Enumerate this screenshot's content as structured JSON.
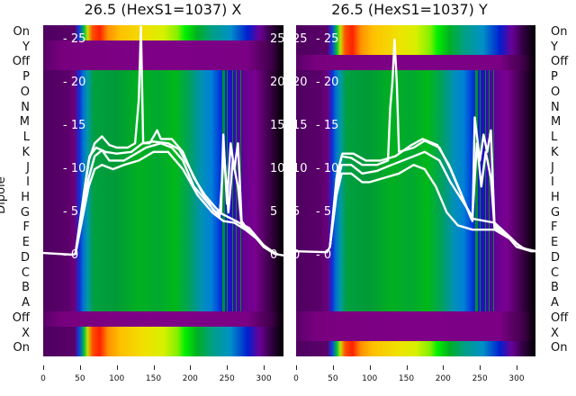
{
  "chart_data": [
    {
      "type": "heatmap",
      "title": "26.5 (HexS1=1037) X",
      "ylabel": "Dipole",
      "xlim": [
        0,
        328
      ],
      "x_ticks": [
        "0",
        "50",
        "100",
        "150",
        "200",
        "250",
        "300"
      ],
      "row_labels": [
        "On",
        "Y",
        "Off",
        "P",
        "O",
        "N",
        "M",
        "L",
        "K",
        "J",
        "I",
        "H",
        "G",
        "F",
        "E",
        "D",
        "C",
        "B",
        "A",
        "Off",
        "X",
        "On"
      ],
      "row_types": [
        "rainbow",
        "purple",
        "purple",
        "green",
        "green",
        "green",
        "green",
        "green",
        "green",
        "green",
        "green",
        "green",
        "green",
        "green",
        "green",
        "green",
        "green",
        "green",
        "green",
        "purple",
        "rainbow",
        "rainbow"
      ],
      "overlay_ylim": [
        0,
        26.5
      ],
      "overlay_y_ticks": [
        "0",
        "5",
        "10",
        "15",
        "20",
        "25"
      ],
      "overlay_lines": [
        {
          "name": "trace-1",
          "points": [
            [
              0,
              0.3
            ],
            [
              40,
              0.1
            ],
            [
              44,
              0.2
            ],
            [
              55,
              7
            ],
            [
              62,
              11
            ],
            [
              70,
              13
            ],
            [
              80,
              13.8
            ],
            [
              90,
              12.8
            ],
            [
              100,
              12.5
            ],
            [
              115,
              12.5
            ],
            [
              125,
              13
            ],
            [
              130,
              18
            ],
            [
              133,
              26.5
            ],
            [
              136,
              13
            ],
            [
              145,
              13
            ],
            [
              155,
              14.5
            ],
            [
              160,
              13.5
            ],
            [
              175,
              13.5
            ],
            [
              190,
              12
            ],
            [
              205,
              9
            ],
            [
              220,
              7
            ],
            [
              235,
              5.5
            ],
            [
              242,
              5
            ],
            [
              245,
              14
            ],
            [
              250,
              6
            ],
            [
              255,
              13
            ],
            [
              260,
              10
            ],
            [
              265,
              13
            ],
            [
              270,
              4
            ],
            [
              278,
              3
            ],
            [
              290,
              2
            ],
            [
              300,
              1
            ],
            [
              315,
              0.2
            ],
            [
              328,
              0
            ]
          ]
        },
        {
          "name": "trace-2",
          "points": [
            [
              44,
              0.2
            ],
            [
              55,
              6
            ],
            [
              62,
              9
            ],
            [
              70,
              11.5
            ],
            [
              80,
              12.2
            ],
            [
              90,
              11
            ],
            [
              110,
              11
            ],
            [
              130,
              12
            ],
            [
              140,
              12.5
            ],
            [
              160,
              13
            ],
            [
              175,
              12.5
            ],
            [
              190,
              11
            ],
            [
              205,
              8
            ],
            [
              220,
              6.5
            ],
            [
              240,
              4.5
            ],
            [
              246,
              12
            ],
            [
              252,
              5
            ],
            [
              258,
              11
            ],
            [
              265,
              8
            ],
            [
              270,
              3.5
            ],
            [
              285,
              2.5
            ],
            [
              300,
              1
            ],
            [
              315,
              0.2
            ]
          ]
        },
        {
          "name": "trace-3",
          "points": [
            [
              44,
              0.2
            ],
            [
              55,
              5
            ],
            [
              62,
              8
            ],
            [
              70,
              10
            ],
            [
              80,
              10.5
            ],
            [
              95,
              10
            ],
            [
              110,
              10.5
            ],
            [
              130,
              11
            ],
            [
              150,
              12
            ],
            [
              170,
              12
            ],
            [
              190,
              10
            ],
            [
              210,
              7
            ],
            [
              230,
              5
            ],
            [
              245,
              4
            ],
            [
              260,
              3.8
            ],
            [
              275,
              3
            ],
            [
              290,
              2
            ],
            [
              305,
              0.8
            ],
            [
              320,
              0.1
            ]
          ]
        },
        {
          "name": "trace-4",
          "points": [
            [
              44,
              0.3
            ],
            [
              56,
              7.5
            ],
            [
              63,
              11.5
            ],
            [
              72,
              12.5
            ],
            [
              85,
              12
            ],
            [
              100,
              11.8
            ],
            [
              120,
              12
            ],
            [
              135,
              13
            ],
            [
              150,
              13.2
            ],
            [
              170,
              13
            ],
            [
              185,
              12.3
            ],
            [
              200,
              10
            ],
            [
              215,
              7.5
            ],
            [
              232,
              5.2
            ],
            [
              244,
              4.8
            ],
            [
              280,
              3.2
            ],
            [
              300,
              1.2
            ],
            [
              318,
              0.1
            ]
          ]
        }
      ]
    },
    {
      "type": "heatmap",
      "title": "26.5 (HexS1=1037) Y",
      "ylabel": "",
      "xlim": [
        0,
        328
      ],
      "x_ticks": [
        "0",
        "50",
        "100",
        "150",
        "200",
        "250",
        "300"
      ],
      "row_labels": [
        "On",
        "Y",
        "Off",
        "P",
        "O",
        "N",
        "M",
        "L",
        "K",
        "J",
        "I",
        "H",
        "G",
        "F",
        "E",
        "D",
        "C",
        "B",
        "A",
        "Off",
        "X",
        "On"
      ],
      "row_types": [
        "rainbow",
        "rainbow",
        "purple",
        "green",
        "green",
        "green",
        "green",
        "green",
        "green",
        "green",
        "green",
        "green",
        "green",
        "green",
        "green",
        "green",
        "green",
        "green",
        "green",
        "purple",
        "purple",
        "rainbow"
      ],
      "overlay_ylim": [
        0,
        26.5
      ],
      "overlay_y_ticks": [
        "0",
        "5",
        "10",
        "15",
        "20",
        "25"
      ],
      "overlay_lines": [
        {
          "name": "trace-1",
          "points": [
            [
              0,
              0.5
            ],
            [
              42,
              0.4
            ],
            [
              46,
              1
            ],
            [
              55,
              9
            ],
            [
              62,
              11.5
            ],
            [
              75,
              11.3
            ],
            [
              90,
              10.5
            ],
            [
              110,
              10.5
            ],
            [
              125,
              11
            ],
            [
              128,
              17
            ],
            [
              131,
              20
            ],
            [
              134,
              25
            ],
            [
              137,
              20
            ],
            [
              140,
              12
            ],
            [
              160,
              12.5
            ],
            [
              175,
              13.3
            ],
            [
              195,
              12.5
            ],
            [
              210,
              10
            ],
            [
              225,
              7
            ],
            [
              240,
              4
            ],
            [
              243,
              16
            ],
            [
              250,
              11
            ],
            [
              255,
              14
            ],
            [
              260,
              12
            ],
            [
              265,
              14.5
            ],
            [
              270,
              3.5
            ],
            [
              285,
              2.5
            ],
            [
              300,
              1
            ],
            [
              320,
              0.5
            ],
            [
              328,
              0.5
            ]
          ]
        },
        {
          "name": "trace-2",
          "points": [
            [
              46,
              1
            ],
            [
              55,
              8
            ],
            [
              62,
              10.5
            ],
            [
              75,
              10.5
            ],
            [
              90,
              9.5
            ],
            [
              110,
              9.8
            ],
            [
              130,
              10.5
            ],
            [
              160,
              11.5
            ],
            [
              175,
              12
            ],
            [
              195,
              11
            ],
            [
              210,
              8.5
            ],
            [
              225,
              6.5
            ],
            [
              240,
              4.5
            ],
            [
              246,
              13
            ],
            [
              252,
              8
            ],
            [
              258,
              12
            ],
            [
              265,
              9
            ],
            [
              270,
              3.2
            ],
            [
              290,
              2
            ],
            [
              310,
              0.8
            ],
            [
              328,
              0.5
            ]
          ]
        },
        {
          "name": "trace-3",
          "points": [
            [
              46,
              1
            ],
            [
              55,
              7
            ],
            [
              62,
              9.5
            ],
            [
              75,
              9.5
            ],
            [
              90,
              8.5
            ],
            [
              100,
              8.5
            ],
            [
              120,
              9
            ],
            [
              140,
              9.5
            ],
            [
              150,
              10
            ],
            [
              160,
              10.5
            ],
            [
              175,
              10
            ],
            [
              190,
              8
            ],
            [
              205,
              5
            ],
            [
              220,
              3.5
            ],
            [
              240,
              3
            ],
            [
              270,
              3
            ],
            [
              290,
              2
            ],
            [
              310,
              0.8
            ]
          ]
        },
        {
          "name": "trace-4",
          "points": [
            [
              46,
              1
            ],
            [
              56,
              9.5
            ],
            [
              63,
              11.8
            ],
            [
              78,
              11.8
            ],
            [
              95,
              11
            ],
            [
              115,
              11
            ],
            [
              135,
              11.5
            ],
            [
              155,
              12.7
            ],
            [
              172,
              13.5
            ],
            [
              192,
              12.8
            ],
            [
              208,
              10.5
            ],
            [
              223,
              7.5
            ],
            [
              238,
              4.3
            ],
            [
              270,
              3.8
            ],
            [
              288,
              2.4
            ],
            [
              305,
              1
            ],
            [
              322,
              0.5
            ]
          ]
        }
      ]
    }
  ]
}
